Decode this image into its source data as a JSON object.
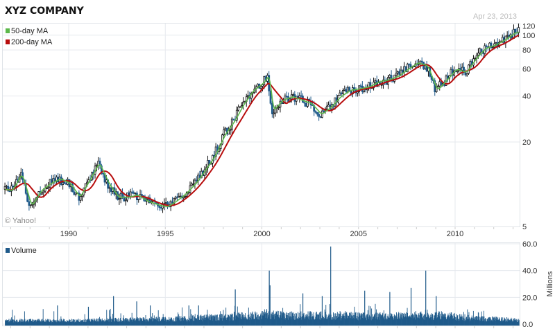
{
  "header": {
    "title": "XYZ COMPANY",
    "date": "Apr 23, 2013"
  },
  "credit": "© Yahoo!",
  "colors": {
    "ma50": "#5cb84a",
    "ma200": "#b80d0d",
    "candle_down": "#1f5a8a",
    "candle_up_outline": "#111111",
    "volume": "#1f5a8a"
  },
  "chart_data": [
    {
      "type": "candlestick",
      "title": "",
      "scale": "log",
      "x_ticks": [
        "1990",
        "1995",
        "2000",
        "2005",
        "2010"
      ],
      "y_ticks": [
        "5",
        "20",
        "40",
        "60",
        "80",
        "100",
        "120"
      ],
      "ylim": [
        5.5,
        120
      ],
      "xlim": [
        1986.7,
        2013.31
      ],
      "grid": true,
      "legend": {
        "position": "top-left",
        "entries": [
          {
            "name": "50-day MA",
            "color": "#5cb84a"
          },
          {
            "name": "200-day MA",
            "color": "#b80d0d"
          }
        ]
      },
      "price_series": {
        "x": [
          1986.7,
          1987,
          1987.5,
          1988,
          1988.5,
          1989,
          1989.5,
          1990,
          1990.5,
          1991,
          1991.5,
          1992,
          1992.5,
          1993,
          1993.5,
          1994,
          1994.5,
          1995,
          1995.5,
          1996,
          1996.5,
          1997,
          1997.5,
          1998,
          1998.5,
          1999,
          1999.5,
          2000,
          2000.3,
          2000.5,
          2001,
          2001.5,
          2002,
          2002.5,
          2003,
          2003.5,
          2004,
          2004.5,
          2005,
          2005.5,
          2006,
          2006.5,
          2007,
          2007.5,
          2008,
          2008.5,
          2009,
          2009.5,
          2010,
          2010.5,
          2011,
          2011.5,
          2012,
          2012.5,
          2013,
          2013.31
        ],
        "close": [
          9.8,
          9.6,
          12.4,
          7.6,
          9.6,
          10.7,
          11.5,
          10.7,
          8.7,
          11.2,
          14.6,
          10.7,
          8.7,
          8.7,
          9.0,
          8.2,
          7.8,
          7.5,
          8.2,
          9.2,
          10.7,
          13.1,
          16.2,
          22.2,
          27.3,
          35.6,
          43.6,
          48.6,
          55,
          32,
          37.5,
          39.6,
          37.5,
          35.6,
          30.3,
          33.8,
          39.6,
          43.6,
          44.6,
          46,
          49.7,
          51,
          54,
          60,
          66,
          63,
          43.6,
          51,
          60,
          57,
          70,
          82,
          86,
          93,
          103,
          106
        ]
      }
    },
    {
      "type": "bar",
      "title": "",
      "legend": {
        "entries": [
          {
            "name": "Volume",
            "color": "#1f5a8a"
          }
        ]
      },
      "ylabel": "Millions",
      "y_ticks": [
        "0.0",
        "20.0",
        "40.0",
        "60.0"
      ],
      "ylim": [
        0,
        60
      ],
      "baseline": {
        "x": [
          1986.7,
          1990,
          1995,
          1998,
          2000,
          2003,
          2006,
          2009,
          2011,
          2013.31
        ],
        "millions": [
          2.5,
          2.5,
          3.5,
          5,
          6.5,
          6,
          5.5,
          6.5,
          4,
          3
        ]
      },
      "spikes": {
        "x": [
          1989.4,
          1991.0,
          1992.3,
          1993.5,
          1994.2,
          1996.2,
          1996.7,
          1998.6,
          2000.36,
          2000.4,
          2002.1,
          2003.1,
          2003.54,
          2005.3,
          2006.6,
          2007.7,
          2008.46,
          2009.0
        ],
        "millions": [
          14,
          13,
          21,
          17,
          14,
          14,
          14,
          26,
          40,
          29,
          23,
          21,
          58,
          25,
          24,
          27,
          40,
          21
        ]
      }
    }
  ]
}
